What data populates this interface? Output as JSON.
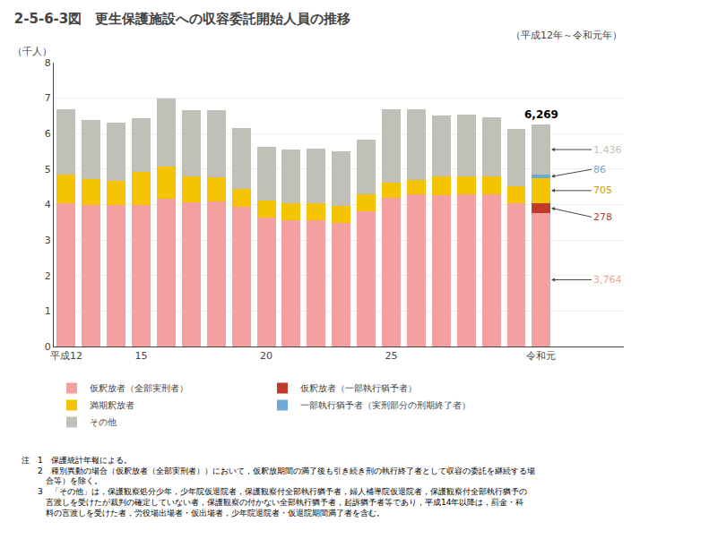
{
  "chart_data": {
    "type": "bar",
    "stacked": true,
    "title": "2-5-6-3図　更生保護施設への収容委託開始人員の推移",
    "subtitle": "（平成12年～令和元年）",
    "ylabel": "（千人）",
    "categories": [
      "平成12",
      null,
      null,
      "15",
      null,
      null,
      null,
      null,
      "20",
      null,
      null,
      null,
      null,
      "25",
      null,
      null,
      null,
      null,
      null,
      "令和元"
    ],
    "series": [
      {
        "name": "仮釈放者（全部実刑者）",
        "color": "#F4A0A0",
        "values": [
          4.03,
          4.0,
          3.99,
          4.0,
          4.16,
          4.07,
          4.1,
          3.93,
          3.64,
          3.56,
          3.55,
          3.48,
          3.8,
          4.19,
          4.28,
          4.27,
          4.28,
          4.28,
          4.04,
          3.764
        ],
        "value_labels": [
          null,
          null,
          null,
          null,
          null,
          null,
          null,
          null,
          null,
          null,
          null,
          null,
          null,
          null,
          null,
          null,
          null,
          null,
          null,
          "3,764"
        ]
      },
      {
        "name": "仮釈放者（一部執行猶予者）",
        "color": "#C0392B",
        "values": [
          0.0,
          0.0,
          0.0,
          0.0,
          0.0,
          0.0,
          0.0,
          0.0,
          0.0,
          0.0,
          0.0,
          0.0,
          0.0,
          0.0,
          0.0,
          0.0,
          0.0,
          0.0,
          0.0,
          0.278
        ],
        "value_labels": [
          null,
          null,
          null,
          null,
          null,
          null,
          null,
          null,
          null,
          null,
          null,
          null,
          null,
          null,
          null,
          null,
          null,
          null,
          null,
          "278"
        ]
      },
      {
        "name": "満期釈放者",
        "color": "#F5C400",
        "values": [
          0.82,
          0.72,
          0.68,
          0.93,
          0.92,
          0.72,
          0.68,
          0.5,
          0.48,
          0.48,
          0.49,
          0.48,
          0.48,
          0.42,
          0.42,
          0.52,
          0.52,
          0.52,
          0.48,
          0.705
        ],
        "value_labels": [
          null,
          null,
          null,
          null,
          null,
          null,
          null,
          null,
          null,
          null,
          null,
          null,
          null,
          null,
          null,
          null,
          null,
          null,
          null,
          "705"
        ]
      },
      {
        "name": "一部執行猶予者（実刑部分の刑期終了者）",
        "color": "#6EA8D5",
        "values": [
          0.0,
          0.0,
          0.0,
          0.0,
          0.0,
          0.0,
          0.0,
          0.0,
          0.0,
          0.0,
          0.0,
          0.0,
          0.0,
          0.0,
          0.0,
          0.0,
          0.0,
          0.0,
          0.0,
          0.086
        ],
        "value_labels": [
          null,
          null,
          null,
          null,
          null,
          null,
          null,
          null,
          null,
          null,
          null,
          null,
          null,
          null,
          null,
          null,
          null,
          null,
          null,
          "86"
        ]
      },
      {
        "name": "その他",
        "color": "#C0C0B8",
        "values": [
          1.84,
          1.67,
          1.64,
          1.5,
          1.9,
          1.87,
          1.87,
          1.72,
          1.52,
          1.52,
          1.54,
          1.55,
          1.54,
          2.07,
          2.0,
          1.71,
          1.73,
          1.65,
          1.61,
          1.436
        ],
        "value_labels": [
          null,
          null,
          null,
          null,
          null,
          null,
          null,
          null,
          null,
          null,
          null,
          null,
          null,
          null,
          null,
          null,
          null,
          null,
          null,
          "1,436"
        ]
      }
    ],
    "annotations": [
      {
        "text": "6,269",
        "value": 6.269,
        "at": "令和元"
      }
    ],
    "notes": [
      "注　1　保護統計年報による。",
      "　　2　種別異動の場合（仮釈放者（全部実刑者））において，仮釈放期間の満了後も引き続き刑の執行終了者として収容の委託を継続する場",
      "　　　合等）を除く。",
      "　　3　「その他」は，保護観察処分少年，少年院仮退院者，保護観察付全部執行猶予者，婦人補導院仮退院者，保護観察付全部執行猶予の",
      "　　　言渡しを受けたが裁判の確定していない者，保護観察の付かない全部執行猶予者，起訴猶予者等であり，平成14年以降は，罰金・科",
      "　　　料の言渡しを受けた者，労役場出場者・仮出場者，少年院退院者・仮退院期間満了者を含む。"
    ],
    "ylim": [
      0,
      8
    ],
    "yticks": [
      0,
      1,
      2,
      3,
      4,
      5,
      6,
      7,
      8
    ],
    "grid": true
  }
}
